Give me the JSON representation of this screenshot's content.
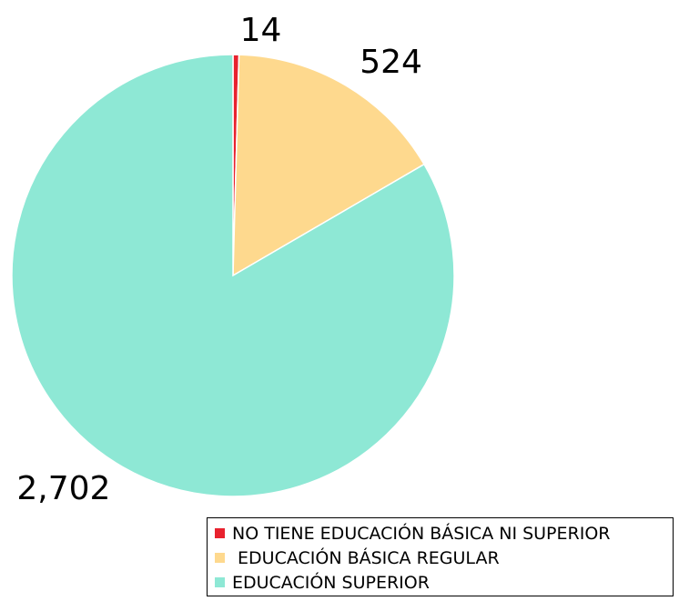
{
  "chart_data": {
    "type": "pie",
    "title": "",
    "categories": [
      "NO TIENE EDUCACIÓN BÁSICA NI SUPERIOR",
      " EDUCACIÓN BÁSICA REGULAR",
      "EDUCACIÓN SUPERIOR"
    ],
    "values": [
      14,
      524,
      2702
    ],
    "data_labels": [
      "14",
      "524",
      "2,702"
    ],
    "colors": [
      "#e8222e",
      "#fed98e",
      "#8ee8d5"
    ],
    "legend": "bottom-right",
    "start_angle": "top, clockwise"
  }
}
